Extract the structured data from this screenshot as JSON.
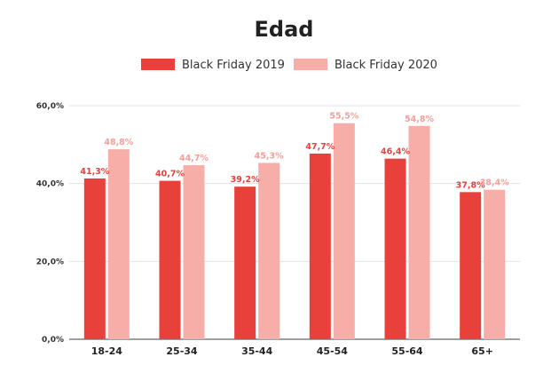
{
  "chart_data": {
    "type": "bar",
    "title": "Edad",
    "categories": [
      "18-24",
      "25-34",
      "35-44",
      "45-54",
      "55-64",
      "65+"
    ],
    "series": [
      {
        "name": "Black Friday 2019",
        "color": "#e8403a",
        "label_color": "#e8403a",
        "values": [
          41.3,
          40.7,
          39.2,
          47.7,
          46.4,
          37.8
        ],
        "labels": [
          "41,3%",
          "40,7%",
          "39,2%",
          "47,7%",
          "46,4%",
          "37,8%"
        ]
      },
      {
        "name": "Black Friday 2020",
        "color": "#f7aea9",
        "label_color": "#f4a09a",
        "values": [
          48.8,
          44.7,
          45.3,
          55.5,
          54.8,
          38.4
        ],
        "labels": [
          "48,8%",
          "44,7%",
          "45,3%",
          "55,5%",
          "54,8%",
          "38,4%"
        ]
      }
    ],
    "y_ticks": [
      0,
      20,
      40,
      60
    ],
    "y_tick_labels": [
      "0,0%",
      "20,0%",
      "40,0%",
      "60,0%"
    ],
    "ylim": [
      0,
      60
    ],
    "grid": true,
    "legend_position": "top-center"
  }
}
